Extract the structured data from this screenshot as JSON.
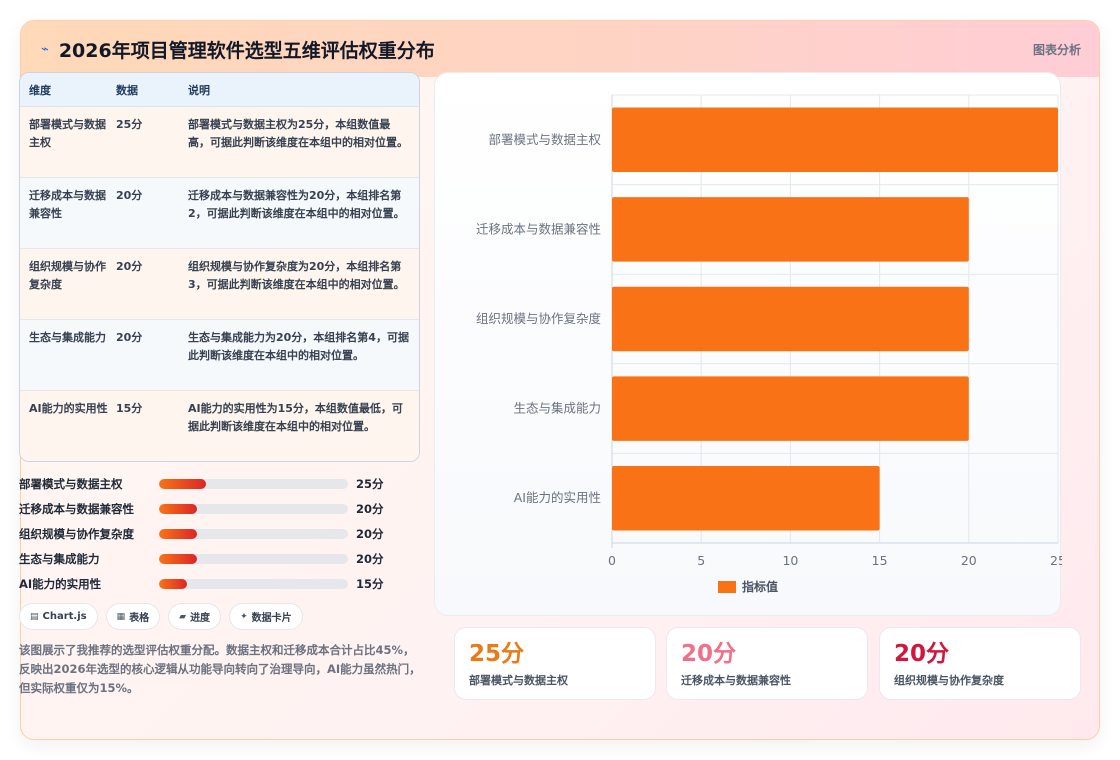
{
  "header": {
    "icon": "sparkle-icon",
    "title": "2026年项目管理软件选型五维评估权重分布",
    "tag": "图表分析"
  },
  "table": {
    "headers": [
      "维度",
      "数据",
      "说明"
    ],
    "rows": [
      {
        "dim": "部署模式与数据主权",
        "val": "25分",
        "desc": "部署模式与数据主权为25分，本组数值最高，可据此判断该维度在本组中的相对位置。"
      },
      {
        "dim": "迁移成本与数据兼容性",
        "val": "20分",
        "desc": "迁移成本与数据兼容性为20分，本组排名第2，可据此判断该维度在本组中的相对位置。"
      },
      {
        "dim": "组织规模与协作复杂度",
        "val": "20分",
        "desc": "组织规模与协作复杂度为20分，本组排名第3，可据此判断该维度在本组中的相对位置。"
      },
      {
        "dim": "生态与集成能力",
        "val": "20分",
        "desc": "生态与集成能力为20分，本组排名第4，可据此判断该维度在本组中的相对位置。"
      },
      {
        "dim": "AI能力的实用性",
        "val": "15分",
        "desc": "AI能力的实用性为15分，本组数值最低，可据此判断该维度在本组中的相对位置。"
      }
    ]
  },
  "progress": [
    {
      "label": "部署模式与数据主权",
      "value": 25,
      "text": "25分"
    },
    {
      "label": "迁移成本与数据兼容性",
      "value": 20,
      "text": "20分"
    },
    {
      "label": "组织规模与协作复杂度",
      "value": 20,
      "text": "20分"
    },
    {
      "label": "生态与集成能力",
      "value": 20,
      "text": "20分"
    },
    {
      "label": "AI能力的实用性",
      "value": 15,
      "text": "15分"
    }
  ],
  "chips": [
    {
      "icon": "chart-icon",
      "glyph": "▤",
      "label": "Chart.js"
    },
    {
      "icon": "table-icon",
      "glyph": "▦",
      "label": "表格"
    },
    {
      "icon": "progress-icon",
      "glyph": "▰",
      "label": "进度"
    },
    {
      "icon": "card-icon",
      "glyph": "✦",
      "label": "数据卡片"
    }
  ],
  "summary": "该图展示了我推荐的选型评估权重分配。数据主权和迁移成本合计占比45%，反映出2026年选型的核心逻辑从功能导向转向了治理导向，AI能力虽然热门，但实际权重仅为15%。",
  "chart_data": {
    "type": "bar",
    "orientation": "horizontal",
    "categories": [
      "部署模式与数据主权",
      "迁移成本与数据兼容性",
      "组织规模与协作复杂度",
      "生态与集成能力",
      "AI能力的实用性"
    ],
    "series": [
      {
        "name": "指标值",
        "values": [
          25,
          20,
          20,
          20,
          15
        ],
        "color": "#f97316"
      }
    ],
    "xlim": [
      0,
      25
    ],
    "xticks": [
      0,
      5,
      10,
      15,
      20,
      25
    ],
    "grid": true,
    "legend": "bottom"
  },
  "stats": [
    {
      "value": "25分",
      "label": "部署模式与数据主权",
      "color": "#ea7a16"
    },
    {
      "value": "20分",
      "label": "迁移成本与数据兼容性",
      "color": "#f06f8a"
    },
    {
      "value": "20分",
      "label": "组织规模与协作复杂度",
      "color": "#d0183f"
    }
  ]
}
